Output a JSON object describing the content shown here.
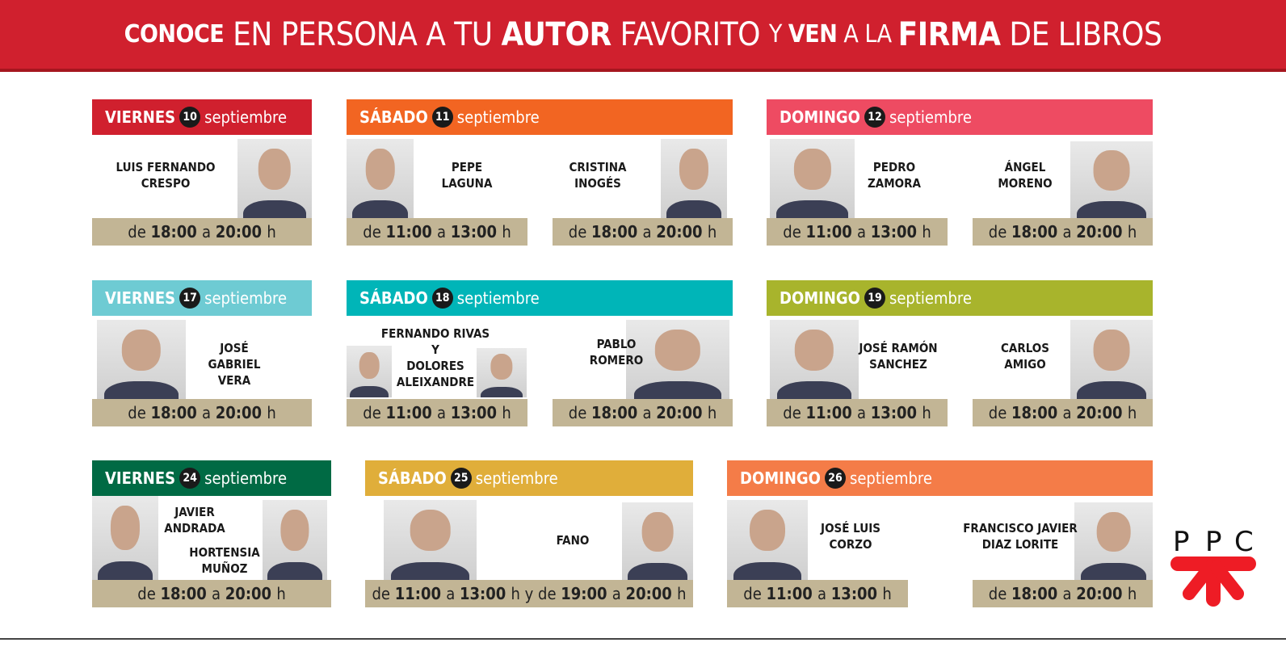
{
  "banner": {
    "segments": [
      {
        "text": "CONOCE",
        "style": "b s"
      },
      {
        "text": " EN PERSONA A TU ",
        "style": "l"
      },
      {
        "text": "AUTOR",
        "style": "b"
      },
      {
        "text": " FAVORITO ",
        "style": "l"
      },
      {
        "text": "Y ",
        "style": "l s"
      },
      {
        "text": "VEN",
        "style": "b s"
      },
      {
        "text": " A LA ",
        "style": "l s"
      },
      {
        "text": "FIRMA",
        "style": "b"
      },
      {
        "text": " DE LIBROS",
        "style": "l"
      }
    ],
    "color": "#d0202e"
  },
  "days": [
    {
      "day": "VIERNES",
      "num": "10",
      "month": "septiembre",
      "color": "#d0202e",
      "authors": [
        {
          "name": "LUIS FERNANDO\nCRESPO"
        }
      ],
      "times": [
        "de 18:00 a 20:00 h"
      ]
    },
    {
      "day": "SÁBADO",
      "num": "11",
      "month": "septiembre",
      "color": "#f26522",
      "authors": [
        {
          "name": "PEPE\nLAGUNA"
        },
        {
          "name": "CRISTINA\nINOGÉS"
        }
      ],
      "times": [
        "de 11:00 a 13:00 h",
        "de 18:00 a 20:00 h"
      ]
    },
    {
      "day": "DOMINGO",
      "num": "12",
      "month": "septiembre",
      "color": "#ee4b62",
      "authors": [
        {
          "name": "PEDRO\nZAMORA"
        },
        {
          "name": "ÁNGEL\nMORENO"
        }
      ],
      "times": [
        "de 11:00 a 13:00 h",
        "de 18:00 a 20:00 h"
      ]
    },
    {
      "day": "VIERNES",
      "num": "17",
      "month": "septiembre",
      "color": "#6ecbd3",
      "authors": [
        {
          "name": "JOSÉ GABRIEL\nVERA"
        }
      ],
      "times": [
        "de 18:00 a 20:00 h"
      ]
    },
    {
      "day": "SÁBADO",
      "num": "18",
      "month": "septiembre",
      "color": "#00b5b8",
      "authors": [
        {
          "name": "FERNANDO RIVAS\nY\nDOLORES\nALEIXANDRE"
        },
        {
          "name": "PABLO\nROMERO"
        }
      ],
      "times": [
        "de 11:00 a 13:00 h",
        "de 18:00 a 20:00 h"
      ]
    },
    {
      "day": "DOMINGO",
      "num": "19",
      "month": "septiembre",
      "color": "#a8b42c",
      "authors": [
        {
          "name": "JOSÉ RAMÓN\nSANCHEZ"
        },
        {
          "name": "CARLOS\nAMIGO"
        }
      ],
      "times": [
        "de 11:00 a 13:00 h",
        "de 18:00 a 20:00 h"
      ]
    },
    {
      "day": "VIERNES",
      "num": "24",
      "month": "septiembre",
      "color": "#006a44",
      "authors": [
        {
          "name": "JAVIER\nANDRADA"
        },
        {
          "name": "HORTENSIA\nMUÑOZ"
        }
      ],
      "times": [
        "de 18:00 a 20:00 h"
      ]
    },
    {
      "day": "SÁBADO",
      "num": "25",
      "month": "septiembre",
      "color": "#e0ae3a",
      "authors": [
        {
          "name": "FANO"
        }
      ],
      "times": [
        "de 11:00 a 13:00 h y de 19:00 a 20:00 h"
      ]
    },
    {
      "day": "DOMINGO",
      "num": "26",
      "month": "septiembre",
      "color": "#f47c48",
      "authors": [
        {
          "name": "JOSÉ LUIS\nCORZO"
        },
        {
          "name": "FRANCISCO JAVIER\nDIAZ LORITE"
        }
      ],
      "times": [
        "de 11:00 a 13:00 h",
        "de 18:00 a 20:00 h"
      ]
    }
  ],
  "logo": {
    "text": "PPC",
    "color": "#ee1c25"
  },
  "colors": {
    "timebar": "#c2b595"
  }
}
